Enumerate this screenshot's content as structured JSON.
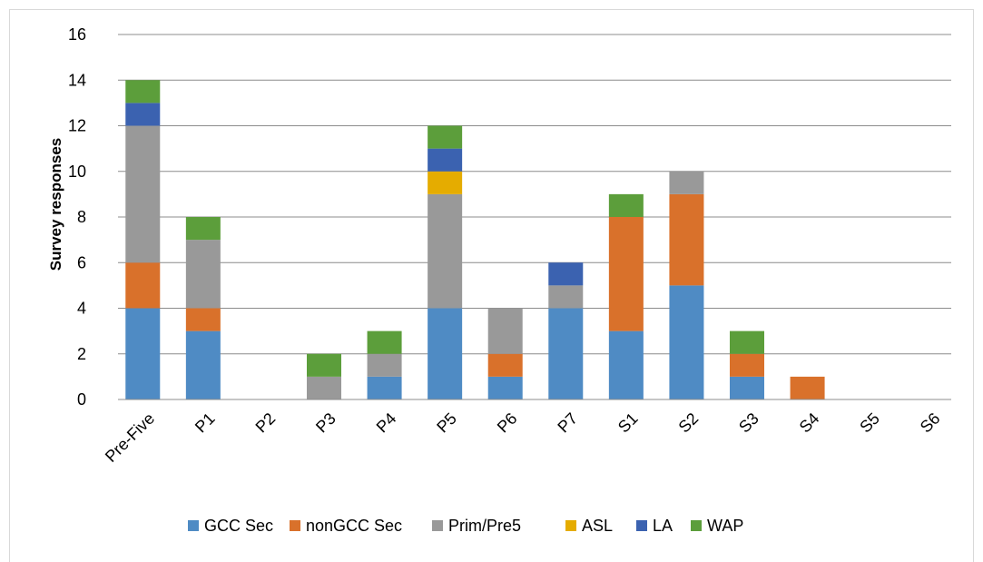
{
  "chart_data": {
    "type": "bar",
    "stacked": true,
    "title": "",
    "xlabel": "",
    "ylabel": "Survey responses",
    "ylim": [
      0,
      16
    ],
    "y_ticks": [
      0,
      2,
      4,
      6,
      8,
      10,
      12,
      14,
      16
    ],
    "grid": true,
    "legend_position": "bottom",
    "categories": [
      "Pre-Five",
      "P1",
      "P2",
      "P3",
      "P4",
      "P5",
      "P6",
      "P7",
      "S1",
      "S2",
      "S3",
      "S4",
      "S5",
      "S6"
    ],
    "series": [
      {
        "name": "GCC Sec",
        "color": "#4f8bc4",
        "values": [
          4,
          3,
          0,
          0,
          1,
          4,
          1,
          4,
          3,
          5,
          1,
          0,
          0,
          0
        ]
      },
      {
        "name": "nonGCC Sec",
        "color": "#d9712b",
        "values": [
          2,
          1,
          0,
          0,
          0,
          0,
          1,
          0,
          5,
          4,
          1,
          1,
          0,
          0
        ]
      },
      {
        "name": "Prim/Pre5",
        "color": "#999999",
        "values": [
          6,
          3,
          0,
          1,
          1,
          5,
          2,
          1,
          0,
          1,
          0,
          0,
          0,
          0
        ]
      },
      {
        "name": "ASL",
        "color": "#e5ac00",
        "values": [
          0,
          0,
          0,
          0,
          0,
          1,
          0,
          0,
          0,
          0,
          0,
          0,
          0,
          0
        ]
      },
      {
        "name": "LA",
        "color": "#3b62b0",
        "values": [
          1,
          0,
          0,
          0,
          0,
          1,
          0,
          1,
          0,
          0,
          0,
          0,
          0,
          0
        ]
      },
      {
        "name": "WAP",
        "color": "#5c9e3b",
        "values": [
          1,
          1,
          0,
          1,
          1,
          1,
          0,
          0,
          1,
          0,
          1,
          0,
          0,
          0
        ]
      }
    ]
  }
}
